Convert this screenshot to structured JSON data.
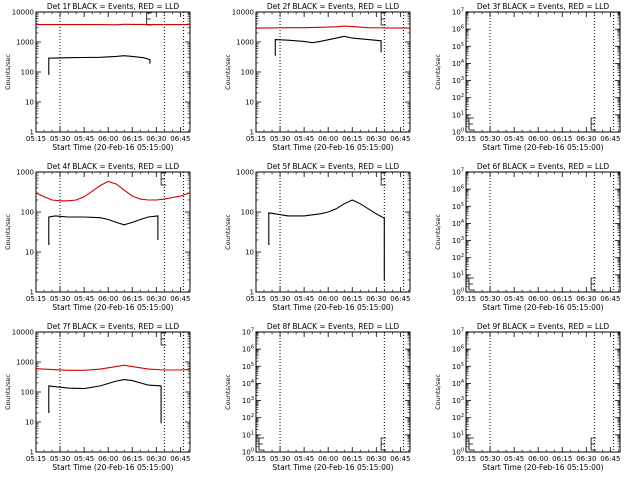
{
  "colors": {
    "events": "#000000",
    "lld": "#d40000",
    "axes": "#000000",
    "background": "#ffffff"
  },
  "x_tick_labels": [
    "05:15",
    "05:30",
    "05:45",
    "06:00",
    "06:15",
    "06:30",
    "06:45"
  ],
  "xlabel": "Start Time (20-Feb-16 05:15:00)",
  "ylabel": "Counts/sec",
  "chart_data": [
    {
      "type": "line",
      "title": "Det 1f BLACK = Events, RED = LLD",
      "y_scale": "log",
      "ylim": [
        1,
        10000
      ],
      "xlim_min": [
        0,
        96
      ],
      "grid": false,
      "ytick_labels": [
        "1",
        "10",
        "100",
        "1000",
        "10000"
      ],
      "vlines_min": [
        15,
        80,
        92
      ],
      "marker_min": 69,
      "series": [
        {
          "name": "Events",
          "x_min": [
            8,
            8,
            12,
            20,
            30,
            40,
            50,
            55,
            60,
            67,
            71,
            71
          ],
          "y": [
            80,
            290,
            290,
            300,
            305,
            310,
            330,
            350,
            330,
            300,
            260,
            190
          ]
        },
        {
          "name": "LLD",
          "x_min": [
            0,
            10,
            20,
            30,
            40,
            50,
            55,
            60,
            70,
            80,
            96
          ],
          "y": [
            3800,
            3800,
            3800,
            3800,
            3800,
            3750,
            3900,
            3850,
            3800,
            3800,
            3800
          ]
        }
      ]
    },
    {
      "type": "line",
      "title": "Det 2f BLACK = Events, RED = LLD",
      "y_scale": "log",
      "ylim": [
        1,
        10000
      ],
      "xlim_min": [
        0,
        96
      ],
      "grid": false,
      "ytick_labels": [
        "1",
        "10",
        "100",
        "1000",
        "10000"
      ],
      "vlines_min": [
        15,
        80,
        92
      ],
      "marker_min": 78,
      "series": [
        {
          "name": "Events",
          "x_min": [
            12,
            12,
            20,
            30,
            35,
            40,
            50,
            55,
            60,
            70,
            78,
            78
          ],
          "y": [
            350,
            1200,
            1150,
            1050,
            950,
            1050,
            1350,
            1550,
            1350,
            1200,
            1100,
            450
          ]
        },
        {
          "name": "LLD",
          "x_min": [
            0,
            10,
            20,
            30,
            40,
            50,
            55,
            60,
            70,
            80,
            96
          ],
          "y": [
            2900,
            2950,
            3000,
            3000,
            3100,
            3200,
            3400,
            3250,
            3000,
            2950,
            2900
          ]
        }
      ]
    },
    {
      "type": "line",
      "title": "Det 3f BLACK = Events, RED = LLD",
      "y_scale": "log",
      "ylim": [
        1,
        10000000
      ],
      "xlim_min": [
        0,
        96
      ],
      "grid": false,
      "ytick_labels": [
        "10^0",
        "10^1",
        "10^2",
        "10^3",
        "10^4",
        "10^5",
        "10^6",
        "10^7"
      ],
      "vlines_min": [
        15,
        80,
        92
      ],
      "marker_min": 78,
      "marker_at_bottom": true,
      "series": []
    },
    {
      "type": "line",
      "title": "Det 4f BLACK = Events, RED = LLD",
      "y_scale": "log",
      "ylim": [
        1,
        1000
      ],
      "xlim_min": [
        0,
        96
      ],
      "grid": false,
      "ytick_labels": [
        "1",
        "10",
        "100",
        "1000"
      ],
      "vlines_min": [
        15,
        80,
        92
      ],
      "marker_min": 78,
      "series": [
        {
          "name": "Events",
          "x_min": [
            8,
            8,
            12,
            20,
            30,
            40,
            45,
            50,
            55,
            60,
            65,
            70,
            76,
            76
          ],
          "y": [
            15,
            75,
            80,
            75,
            75,
            72,
            65,
            55,
            48,
            55,
            65,
            75,
            80,
            20
          ]
        },
        {
          "name": "LLD",
          "x_min": [
            0,
            5,
            10,
            15,
            20,
            25,
            30,
            35,
            40,
            45,
            50,
            55,
            60,
            65,
            70,
            75,
            80,
            85,
            90,
            96
          ],
          "y": [
            300,
            240,
            200,
            190,
            190,
            200,
            240,
            330,
            460,
            580,
            500,
            350,
            250,
            210,
            200,
            200,
            210,
            230,
            250,
            300
          ]
        }
      ]
    },
    {
      "type": "line",
      "title": "Det 5f BLACK = Events, RED = LLD",
      "y_scale": "log",
      "ylim": [
        1,
        1000
      ],
      "xlim_min": [
        0,
        96
      ],
      "grid": false,
      "ytick_labels": [
        "1",
        "10",
        "100",
        "1000"
      ],
      "vlines_min": [
        15,
        80,
        92
      ],
      "marker_min": 78,
      "series": [
        {
          "name": "Events",
          "x_min": [
            8,
            8,
            12,
            20,
            30,
            40,
            45,
            50,
            55,
            60,
            65,
            70,
            75,
            80,
            80
          ],
          "y": [
            15,
            95,
            90,
            80,
            80,
            90,
            100,
            120,
            160,
            200,
            160,
            120,
            90,
            70,
            2
          ]
        }
      ]
    },
    {
      "type": "line",
      "title": "Det 6f BLACK = Events, RED = LLD",
      "y_scale": "log",
      "ylim": [
        1,
        10000000
      ],
      "xlim_min": [
        0,
        96
      ],
      "grid": false,
      "ytick_labels": [
        "10^0",
        "10^1",
        "10^2",
        "10^3",
        "10^4",
        "10^5",
        "10^6",
        "10^7"
      ],
      "vlines_min": [
        15,
        80,
        92
      ],
      "marker_min": 78,
      "marker_at_bottom": true,
      "series": []
    },
    {
      "type": "line",
      "title": "Det 7f BLACK = Events, RED = LLD",
      "y_scale": "log",
      "ylim": [
        1,
        10000
      ],
      "xlim_min": [
        0,
        96
      ],
      "grid": false,
      "ytick_labels": [
        "1",
        "10",
        "100",
        "1000",
        "10000"
      ],
      "vlines_min": [
        15,
        80,
        92
      ],
      "marker_min": 78,
      "series": [
        {
          "name": "Events",
          "x_min": [
            8,
            8,
            12,
            20,
            30,
            40,
            50,
            55,
            60,
            70,
            78,
            78
          ],
          "y": [
            20,
            160,
            150,
            135,
            130,
            160,
            230,
            260,
            240,
            170,
            160,
            9
          ]
        },
        {
          "name": "LLD",
          "x_min": [
            0,
            10,
            20,
            30,
            40,
            50,
            55,
            60,
            70,
            80,
            90,
            96
          ],
          "y": [
            600,
            560,
            530,
            530,
            580,
            700,
            780,
            700,
            580,
            540,
            540,
            560
          ]
        }
      ]
    },
    {
      "type": "line",
      "title": "Det 8f BLACK = Events, RED = LLD",
      "y_scale": "log",
      "ylim": [
        1,
        10000000
      ],
      "xlim_min": [
        0,
        96
      ],
      "grid": false,
      "ytick_labels": [
        "10^0",
        "10^1",
        "10^2",
        "10^3",
        "10^4",
        "10^5",
        "10^6",
        "10^7"
      ],
      "vlines_min": [
        15,
        80,
        92
      ],
      "marker_min": 78,
      "marker_at_bottom": true,
      "series": []
    },
    {
      "type": "line",
      "title": "Det 9f BLACK = Events, RED = LLD",
      "y_scale": "log",
      "ylim": [
        1,
        10000000
      ],
      "xlim_min": [
        0,
        96
      ],
      "grid": false,
      "ytick_labels": [
        "10^0",
        "10^1",
        "10^2",
        "10^3",
        "10^4",
        "10^5",
        "10^6",
        "10^7"
      ],
      "vlines_min": [
        15,
        80,
        92
      ],
      "marker_min": 78,
      "marker_at_bottom": true,
      "series": []
    }
  ]
}
